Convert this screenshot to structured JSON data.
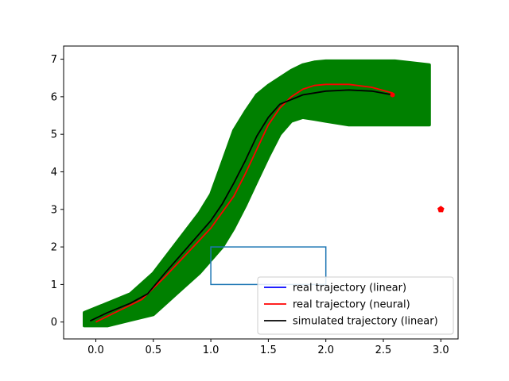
{
  "chart_data": {
    "type": "line",
    "title": "",
    "xlabel": "",
    "ylabel": "",
    "xlim": [
      -0.28,
      3.15
    ],
    "ylim": [
      -0.45,
      7.35
    ],
    "xticks": [
      0.0,
      0.5,
      1.0,
      1.5,
      2.0,
      2.5,
      3.0
    ],
    "yticks": [
      0,
      1,
      2,
      3,
      4,
      5,
      6,
      7
    ],
    "xtick_labels": [
      "0.0",
      "0.5",
      "1.0",
      "1.5",
      "2.0",
      "2.5",
      "3.0"
    ],
    "ytick_labels": [
      "0",
      "1",
      "2",
      "3",
      "4",
      "5",
      "6",
      "7"
    ],
    "grid": false,
    "legend_position": "bottom-right",
    "series": [
      {
        "name": "real trajectory (linear)",
        "color": "#0000ff",
        "x": [],
        "y": []
      },
      {
        "name": "real trajectory (neural)",
        "color": "#ff0000",
        "x": [
          0.0,
          0.2,
          0.4,
          0.6,
          0.8,
          1.0,
          1.2,
          1.3,
          1.4,
          1.5,
          1.6,
          1.7,
          1.8,
          1.9,
          2.0,
          2.2,
          2.4,
          2.58
        ],
        "y": [
          0.0,
          0.3,
          0.6,
          1.2,
          1.85,
          2.5,
          3.35,
          3.95,
          4.6,
          5.25,
          5.7,
          6.0,
          6.2,
          6.3,
          6.33,
          6.33,
          6.25,
          6.1
        ]
      },
      {
        "name": "simulated trajectory (linear)",
        "color": "#000000",
        "x": [
          -0.05,
          0.1,
          0.3,
          0.45,
          0.6,
          0.8,
          1.0,
          1.1,
          1.2,
          1.3,
          1.4,
          1.5,
          1.6,
          1.8,
          2.0,
          2.2,
          2.4,
          2.58
        ],
        "y": [
          0.03,
          0.25,
          0.5,
          0.75,
          1.3,
          2.0,
          2.7,
          3.15,
          3.7,
          4.3,
          4.95,
          5.45,
          5.8,
          6.05,
          6.15,
          6.18,
          6.15,
          6.05
        ]
      }
    ],
    "uncertainty_band": {
      "color": "#008000",
      "x": [
        -0.1,
        0.1,
        0.3,
        0.5,
        0.7,
        0.9,
        1.0,
        1.1,
        1.2,
        1.3,
        1.4,
        1.5,
        1.6,
        1.7,
        1.8,
        1.9,
        2.0,
        2.2,
        2.4,
        2.6,
        2.9
      ],
      "upper": [
        0.25,
        0.5,
        0.75,
        1.3,
        2.1,
        2.9,
        3.4,
        4.25,
        5.1,
        5.6,
        6.05,
        6.3,
        6.5,
        6.7,
        6.85,
        6.92,
        6.95,
        6.95,
        6.95,
        6.95,
        6.85
      ],
      "lower": [
        -0.1,
        -0.1,
        0.05,
        0.2,
        0.75,
        1.3,
        1.65,
        2.0,
        2.5,
        3.1,
        3.75,
        4.4,
        5.0,
        5.35,
        5.45,
        5.4,
        5.35,
        5.25,
        5.25,
        5.25,
        5.25
      ]
    },
    "rectangle": {
      "x": 1.0,
      "y": 1.0,
      "width": 1.0,
      "height": 1.0,
      "color": "#1f77b4"
    },
    "goal_marker": {
      "x": 3.0,
      "y": 3.0,
      "color": "#ff0000",
      "shape": "pentagon"
    },
    "start_marker": {
      "x": 2.58,
      "y": 6.05,
      "color": "#ff0000"
    }
  }
}
